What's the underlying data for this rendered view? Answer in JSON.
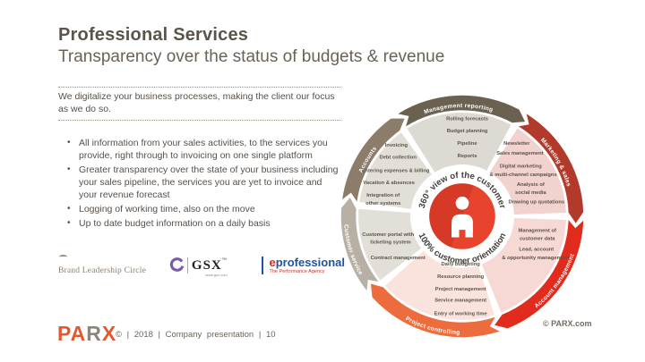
{
  "header": {
    "title": "Professional Services",
    "subtitle": "Transparency over the status of budgets & revenue"
  },
  "left_panel": {
    "intro": "We digitalize your business processes, making the client our focus as we do so.",
    "bullets": [
      "All information from your sales activities, to the services you provide, right through to invoicing on one single platform",
      "Greater transparency over the state of your business including your sales pipeline, the services you are yet to invoice and your revenue forecast",
      "Logging of working time, also on the move",
      "Up to date budget information on a daily basis"
    ]
  },
  "logos": {
    "brand_leadership_circle": "Brand Leadership Circle",
    "gsx": {
      "wordmark": "GSX",
      "tm": "™",
      "url": "www.gsx.com"
    },
    "eprofessional": {
      "e": "e",
      "rest": "professional",
      "tagline": "The Performance Agency"
    }
  },
  "footer": {
    "parx": {
      "pa": "PA",
      "r": "R",
      "x": "X"
    },
    "meta": "© | 2018 | Company presentation | 10"
  },
  "diagram": {
    "copyright": "© PARX.com",
    "center": {
      "line1": "360° view of the customer",
      "line2": "100% customer orientation",
      "circle_color": "#E8432C",
      "shade_color": "#C23120"
    },
    "segments": [
      {
        "id": "management-reporting",
        "label": "Management reporting",
        "arc_color": "#6B6150",
        "fill_color": "#DDDAD3",
        "lines": [
          "Rolling forecasts",
          "Budget planning",
          "Pipeline",
          "Reports"
        ]
      },
      {
        "id": "marketing-sales",
        "label": "Marketing & sales",
        "arc_color": "#B23A2B",
        "fill_color": "#F2D2CF",
        "lines": [
          "Newsletter",
          "Sales management",
          "Digital marketing",
          "& multi-channel campaigns",
          "Analysis of",
          "social media",
          "Drawing up quotations"
        ]
      },
      {
        "id": "account-management",
        "label": "Account management",
        "arc_color": "#E12B1D",
        "fill_color": "#F6D8D4",
        "lines": [
          "Management of",
          "customer data",
          "Lead, account",
          "& opportunity management"
        ]
      },
      {
        "id": "project-controlling",
        "label": "Project controlling",
        "arc_color": "#EC6C3E",
        "fill_color": "#FAE3DC",
        "lines": [
          "Daily budgeting",
          "Resource planning",
          "Project management",
          "Service management",
          "Entry of working time"
        ]
      },
      {
        "id": "customer-service",
        "label": "Customer service",
        "arc_color": "#B9B0A5",
        "fill_color": "#E2DFD8",
        "lines": [
          "Customer portal with",
          "ticketing system",
          "Contract management"
        ]
      },
      {
        "id": "accounts",
        "label": "Accounts",
        "arc_color": "#8C7C6A",
        "fill_color": "#E2DFD8",
        "lines": [
          "Invoicing",
          "Debt collection",
          "Entering expenses & billing",
          "Vacation & absences",
          "Integration of",
          "other systems"
        ]
      }
    ]
  }
}
